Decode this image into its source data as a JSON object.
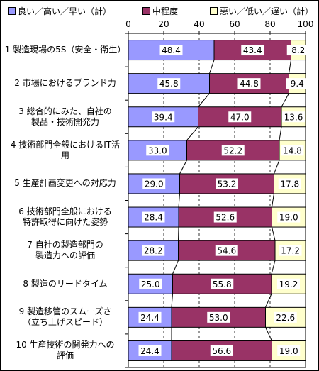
{
  "chart_data": {
    "type": "bar",
    "stacked": true,
    "orientation": "horizontal",
    "xlim": [
      0,
      100
    ],
    "x_ticks": [
      "0",
      "20",
      "40",
      "60",
      "80",
      "100"
    ],
    "grid": true,
    "legend_position": "top",
    "categories": [
      "1 製造現場の5S（安全・衛生）",
      "2 市場におけるブランド力",
      "3 総合的にみた、自社の製品・技術開発力",
      "4 技術部門全般におけるIT活用",
      "5 生産計画変更への対応力",
      "6 技術部門全般における特許取得に向けた姿勢",
      "7 自社の製造部門の製造力への評価",
      "8 製造のリードタイム",
      "9 製造移管のスムーズさ（立ち上げスピード）",
      "10 生産技術の開発力への評価"
    ],
    "category_lines": [
      [
        "1 製造現場の5S（安全・衛生）"
      ],
      [
        "2 市場におけるブランド力"
      ],
      [
        "3 総合的にみた、自社の",
        "製品・技術開発力"
      ],
      [
        "4 技術部門全般におけるIT活",
        "用"
      ],
      [
        "5 生産計画変更への対応力"
      ],
      [
        "6 技術部門全般における",
        "特許取得に向けた姿勢"
      ],
      [
        "7 自社の製造部門の",
        "製造力への評価"
      ],
      [
        "8 製造のリードタイム"
      ],
      [
        "9 製造移管のスムーズさ",
        "（立ち上げスピード）"
      ],
      [
        "10 生産技術の開発力への",
        "評価"
      ]
    ],
    "series": [
      {
        "name": "良い／高い／早い（計）",
        "color": "#9999ff",
        "values": [
          48.4,
          45.8,
          39.4,
          33.0,
          29.0,
          28.4,
          28.2,
          25.0,
          24.4,
          24.4
        ],
        "labels": [
          "48.4",
          "45.8",
          "39.4",
          "33.0",
          "29.0",
          "28.4",
          "28.2",
          "25.0",
          "24.4",
          "24.4"
        ]
      },
      {
        "name": "中程度",
        "color": "#993366",
        "values": [
          43.4,
          44.8,
          47.0,
          52.2,
          53.2,
          52.6,
          54.6,
          55.8,
          53.0,
          56.6
        ],
        "labels": [
          "43.4",
          "44.8",
          "47.0",
          "52.2",
          "53.2",
          "52.6",
          "54.6",
          "55.8",
          "53.0",
          "56.6"
        ]
      },
      {
        "name": "悪い／低い／遅い（計）",
        "color": "#ffffcc",
        "values": [
          8.2,
          9.4,
          13.6,
          14.8,
          17.8,
          19.0,
          17.2,
          19.2,
          22.6,
          19.0
        ],
        "labels": [
          "8.2",
          "9.4",
          "13.6",
          "14.8",
          "17.8",
          "19.0",
          "17.2",
          "19.2",
          "22.6",
          "19.0"
        ]
      }
    ]
  }
}
